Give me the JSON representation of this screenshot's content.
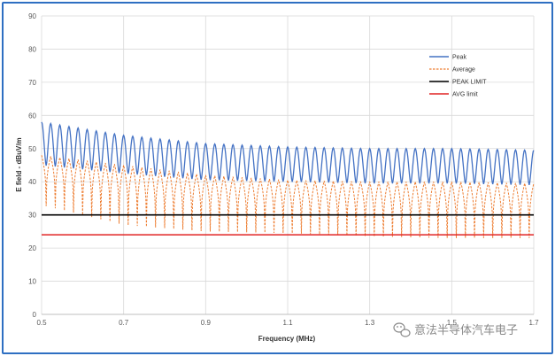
{
  "chart_data": {
    "type": "line",
    "xlabel": "Frequency (MHz)",
    "ylabel": "E field - dBuV/m",
    "xlim": [
      0.5,
      1.7
    ],
    "ylim": [
      0,
      90
    ],
    "x_ticks": [
      0.5,
      0.7,
      0.9,
      1.1,
      1.3,
      1.5,
      1.7
    ],
    "x_tick_labels": [
      "0.5",
      "0.7",
      "0.9",
      "1.1",
      "1.3",
      "1.5",
      "1.7"
    ],
    "y_ticks": [
      0,
      10,
      20,
      30,
      40,
      50,
      60,
      70,
      80,
      90
    ],
    "grid": true,
    "legend_position": "top-right",
    "oscillation_cycles": 54,
    "series": [
      {
        "name": "Peak",
        "style": "solid",
        "color": "#4472c4",
        "upper_envelope": {
          "x": [
            0.5,
            0.7,
            0.9,
            1.1,
            1.3,
            1.5,
            1.7
          ],
          "y": [
            58,
            54,
            51.5,
            50.5,
            50,
            50,
            49.5
          ]
        },
        "lower_envelope": {
          "x": [
            0.5,
            0.7,
            0.9,
            1.1,
            1.3,
            1.5,
            1.7
          ],
          "y": [
            45,
            42.5,
            40.5,
            40,
            39.5,
            39.5,
            39
          ]
        }
      },
      {
        "name": "Average",
        "style": "dashed",
        "color": "#ed7d31",
        "upper_envelope": {
          "x": [
            0.5,
            0.7,
            0.9,
            1.1,
            1.3,
            1.5,
            1.7
          ],
          "y": [
            48,
            45,
            42,
            40.5,
            40,
            40,
            39.5
          ]
        },
        "lower_envelope": {
          "x": [
            0.5,
            0.7,
            0.9,
            1.1,
            1.3,
            1.5,
            1.7
          ],
          "y": [
            33,
            27,
            25,
            24.5,
            23.5,
            23,
            23
          ]
        }
      },
      {
        "name": "PEAK LIMIT",
        "style": "solid",
        "color": "#000000",
        "x": [
          0.5,
          1.7
        ],
        "y": [
          30,
          30
        ]
      },
      {
        "name": "AVG limit",
        "style": "solid",
        "color": "#e02424",
        "x": [
          0.5,
          1.7
        ],
        "y": [
          24,
          24
        ]
      }
    ]
  },
  "watermark": {
    "icon": "wechat-icon",
    "text": "意法半导体汽车电子"
  }
}
